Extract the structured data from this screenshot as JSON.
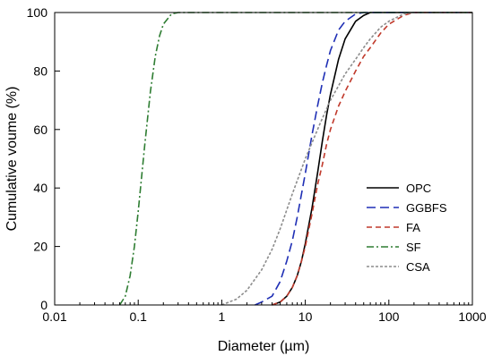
{
  "chart_data": {
    "type": "line",
    "title": "",
    "xlabel": "Diameter (µm)",
    "ylabel": "Cumulative voume (%)",
    "xscale": "log",
    "xlim": [
      0.01,
      1000
    ],
    "ylim": [
      0,
      100
    ],
    "xticks": [
      0.01,
      0.1,
      1,
      10,
      100,
      1000
    ],
    "xtick_labels": [
      "0.01",
      "0.1",
      "1",
      "10",
      "100",
      "1000"
    ],
    "yticks": [
      0,
      20,
      40,
      60,
      80,
      100
    ],
    "ytick_labels": [
      "0",
      "20",
      "40",
      "60",
      "80",
      "100"
    ],
    "grid": false,
    "legend_position": "right",
    "series": [
      {
        "name": "OPC",
        "color": "#000000",
        "dash": "solid",
        "x": [
          4,
          5,
          6,
          7,
          8,
          9,
          10,
          12,
          14,
          16,
          18,
          20,
          25,
          30,
          40,
          50,
          60,
          80,
          100,
          1000
        ],
        "y": [
          0,
          1,
          3,
          6,
          10,
          15,
          21,
          33,
          45,
          56,
          65,
          72,
          84,
          91,
          97,
          99,
          100,
          100,
          100,
          100
        ]
      },
      {
        "name": "GGBFS",
        "color": "#1f2fb5",
        "dash": "long",
        "x": [
          2.5,
          3,
          4,
          5,
          6,
          7,
          8,
          10,
          12,
          14,
          16,
          18,
          20,
          25,
          30,
          40,
          50,
          60,
          1000
        ],
        "y": [
          0,
          1,
          3,
          8,
          15,
          22,
          30,
          45,
          58,
          68,
          76,
          82,
          87,
          94,
          97,
          99.5,
          100,
          100,
          100
        ]
      },
      {
        "name": "FA",
        "color": "#c0392b",
        "dash": "medium",
        "x": [
          4,
          5,
          6,
          7,
          8,
          9,
          10,
          12,
          14,
          16,
          18,
          20,
          25,
          30,
          40,
          50,
          60,
          80,
          100,
          150,
          200,
          1000
        ],
        "y": [
          0,
          1,
          3,
          6,
          10,
          15,
          20,
          31,
          41,
          48,
          55,
          60,
          68,
          73,
          80,
          85,
          88,
          93,
          96,
          99,
          100,
          100
        ]
      },
      {
        "name": "SF",
        "color": "#2e7d32",
        "dash": "dashdot",
        "x": [
          0.06,
          0.07,
          0.08,
          0.09,
          0.1,
          0.12,
          0.14,
          0.16,
          0.18,
          0.2,
          0.25,
          0.3,
          1000
        ],
        "y": [
          0,
          3,
          10,
          20,
          32,
          55,
          73,
          85,
          92,
          96,
          99.5,
          100,
          100
        ]
      },
      {
        "name": "CSA",
        "color": "#8c8c8c",
        "dash": "dotted",
        "x": [
          1,
          1.5,
          2,
          3,
          4,
          5,
          7,
          10,
          15,
          20,
          30,
          40,
          50,
          60,
          80,
          100,
          150,
          200,
          1000
        ],
        "y": [
          0,
          2,
          5,
          12,
          19,
          26,
          38,
          50,
          62,
          70,
          79,
          84,
          88,
          91,
          95,
          97,
          99.5,
          100,
          100
        ]
      }
    ]
  }
}
